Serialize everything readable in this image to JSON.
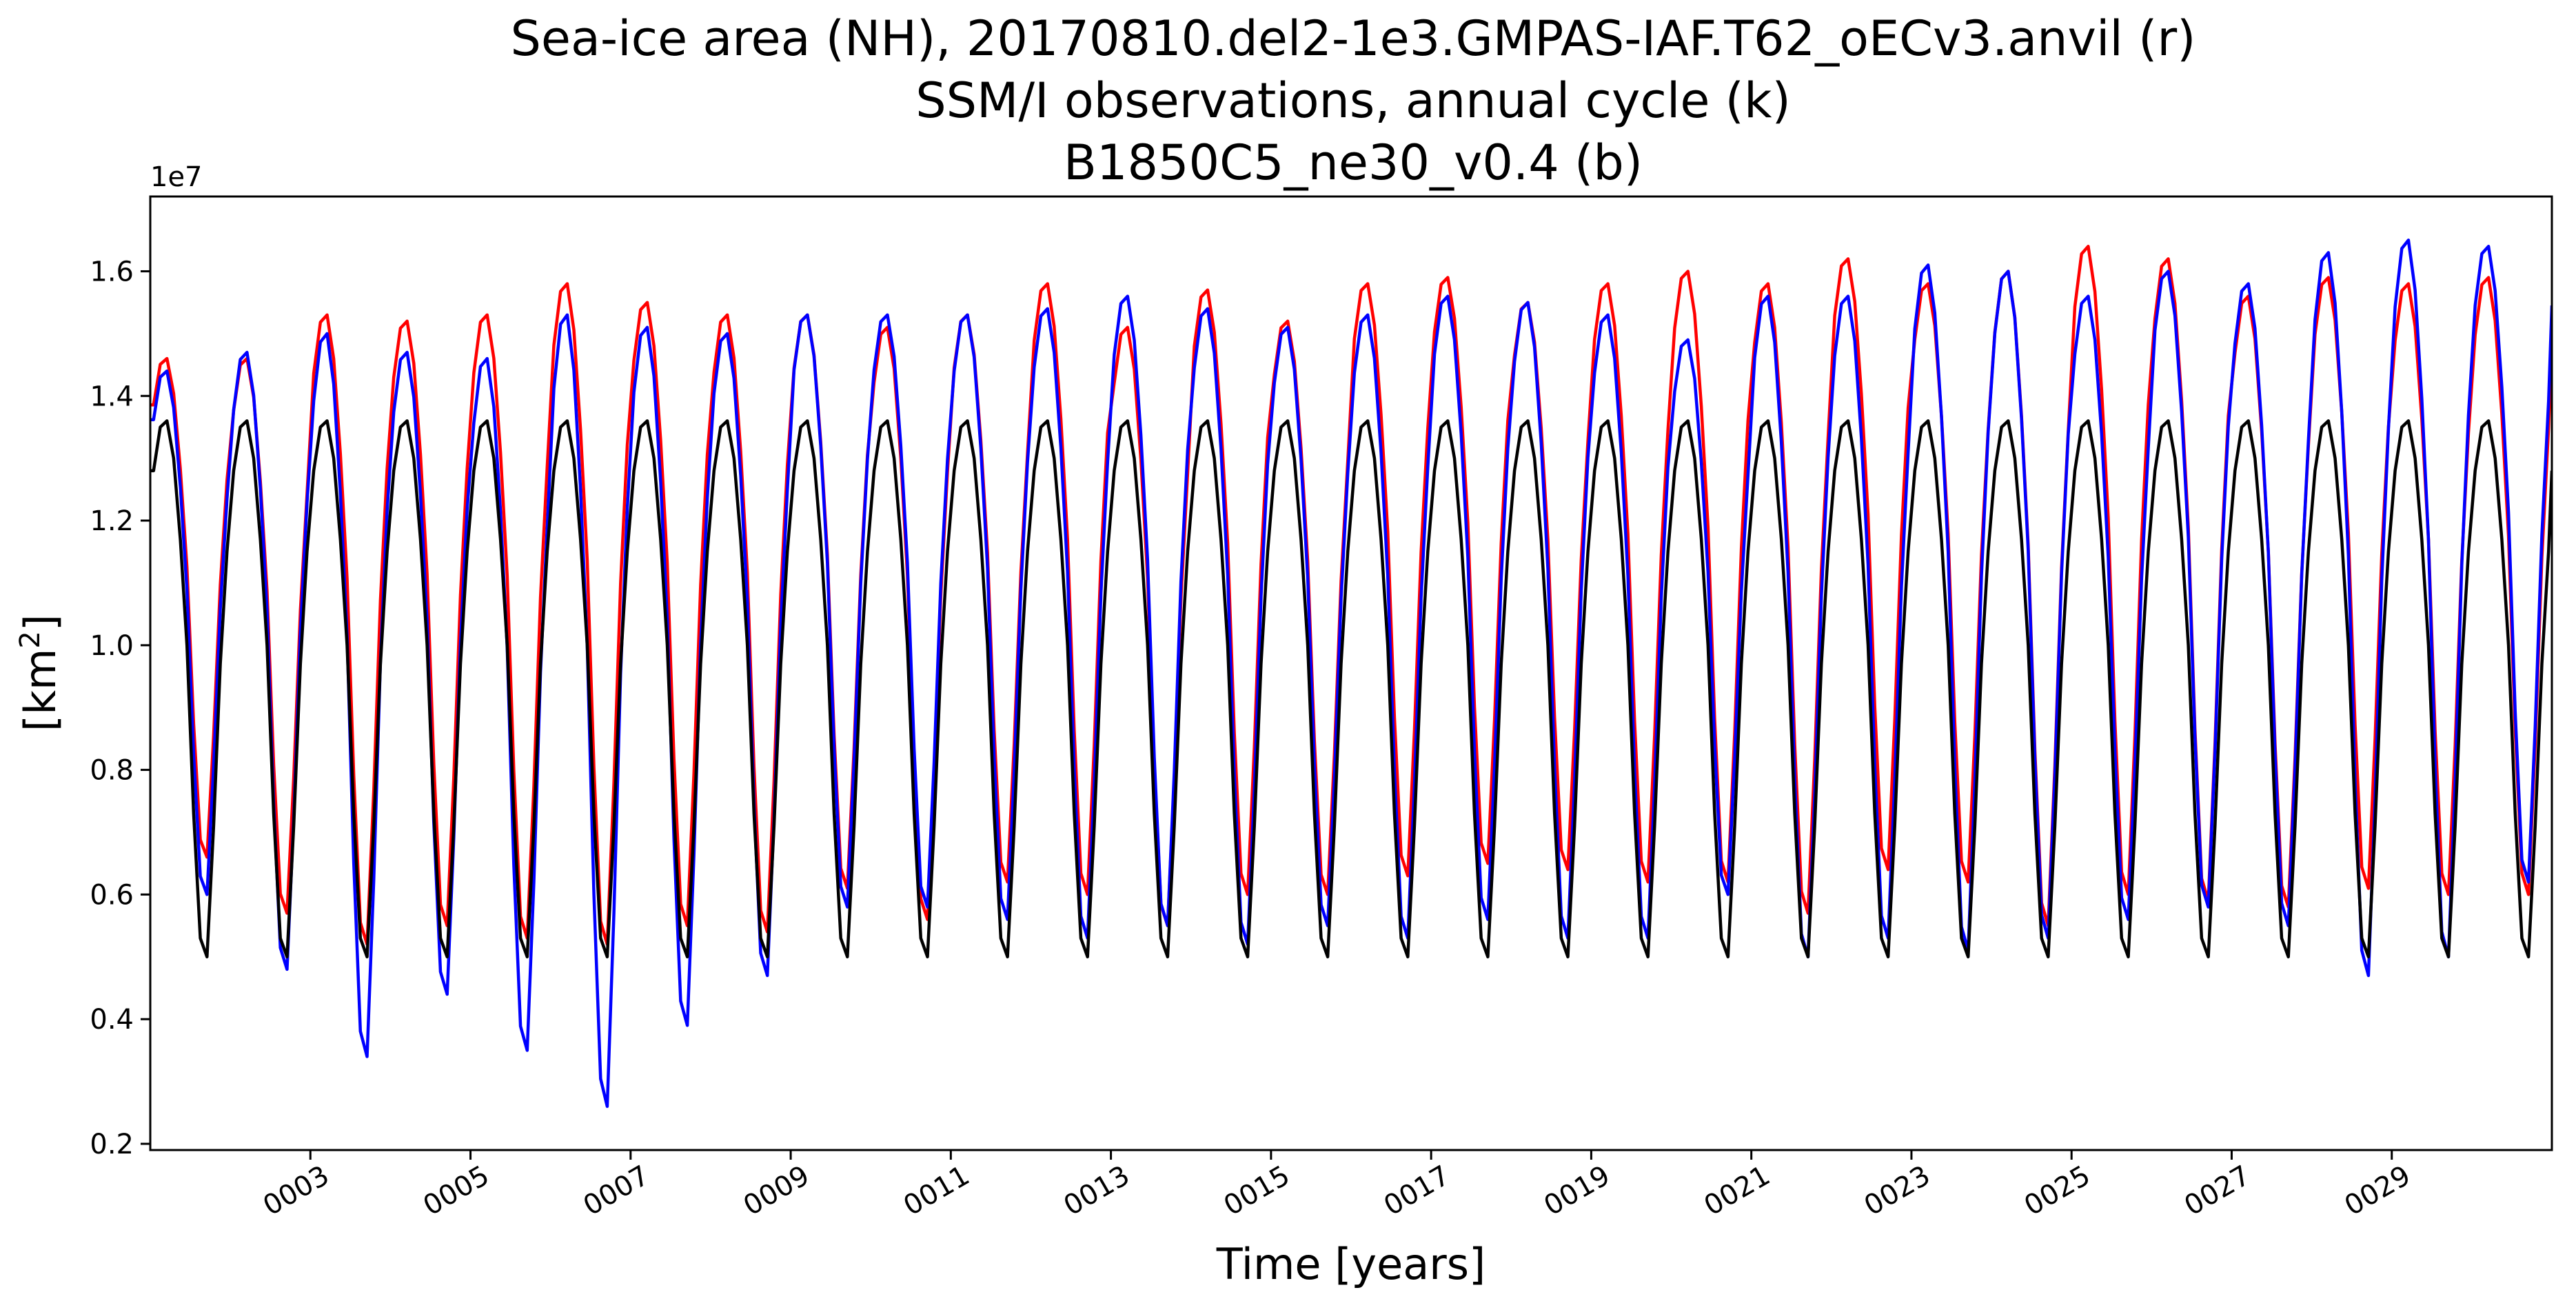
{
  "chart_data": {
    "type": "line",
    "title_lines": [
      "Sea-ice area (NH), 20170810.del2-1e3.GMPAS-IAF.T62_oECv3.anvil (r)",
      "SSM/I observations, annual cycle (k)",
      "B1850C5_ne30_v0.4 (b)"
    ],
    "xlabel": "Time [years]",
    "ylabel": "[km",
    "ylabel_superscript": "2",
    "ylabel_suffix": "]",
    "y_offset_label": "1e7",
    "xlim": [
      1.0,
      31.0
    ],
    "ylim": [
      0.19,
      1.72
    ],
    "x_ticks": [
      {
        "value": 3,
        "label": "0003"
      },
      {
        "value": 5,
        "label": "0005"
      },
      {
        "value": 7,
        "label": "0007"
      },
      {
        "value": 9,
        "label": "0009"
      },
      {
        "value": 11,
        "label": "0011"
      },
      {
        "value": 13,
        "label": "0013"
      },
      {
        "value": 15,
        "label": "0015"
      },
      {
        "value": 17,
        "label": "0017"
      },
      {
        "value": 19,
        "label": "0019"
      },
      {
        "value": 21,
        "label": "0021"
      },
      {
        "value": 23,
        "label": "0023"
      },
      {
        "value": 25,
        "label": "0025"
      },
      {
        "value": 27,
        "label": "0027"
      },
      {
        "value": 29,
        "label": "0029"
      }
    ],
    "y_ticks": [
      {
        "value": 0.2,
        "label": "0.2"
      },
      {
        "value": 0.4,
        "label": "0.4"
      },
      {
        "value": 0.6,
        "label": "0.6"
      },
      {
        "value": 0.8,
        "label": "0.8"
      },
      {
        "value": 1.0,
        "label": "1.0"
      },
      {
        "value": 1.2,
        "label": "1.2"
      },
      {
        "value": 1.4,
        "label": "1.4"
      },
      {
        "value": 1.6,
        "label": "1.6"
      }
    ],
    "months_per_year": 12,
    "series": [
      {
        "color": "#000000",
        "climatology": [
          1.28,
          1.35,
          1.36,
          1.3,
          1.17,
          1.0,
          0.73,
          0.53,
          0.5,
          0.71,
          0.97,
          1.15
        ]
      },
      {
        "color": "#ff0000",
        "peaks": [
          1.46,
          1.46,
          1.53,
          1.52,
          1.53,
          1.58,
          1.55,
          1.53,
          1.53,
          1.51,
          1.53,
          1.58,
          1.51,
          1.57,
          1.52,
          1.58,
          1.59,
          1.55,
          1.58,
          1.6,
          1.58,
          1.62,
          1.58,
          1.6,
          1.64,
          1.62,
          1.56,
          1.59,
          1.58,
          1.59
        ],
        "troughs": [
          0.66,
          0.57,
          0.52,
          0.55,
          0.53,
          0.52,
          0.55,
          0.54,
          0.61,
          0.56,
          0.62,
          0.6,
          0.55,
          0.6,
          0.6,
          0.63,
          0.65,
          0.64,
          0.62,
          0.62,
          0.57,
          0.64,
          0.62,
          0.55,
          0.6,
          0.59,
          0.58,
          0.61,
          0.6,
          0.6
        ]
      },
      {
        "color": "#0000ff",
        "peaks": [
          1.44,
          1.47,
          1.5,
          1.47,
          1.46,
          1.53,
          1.51,
          1.5,
          1.53,
          1.53,
          1.53,
          1.54,
          1.56,
          1.54,
          1.51,
          1.53,
          1.56,
          1.55,
          1.53,
          1.49,
          1.56,
          1.56,
          1.61,
          1.6,
          1.56,
          1.6,
          1.58,
          1.63,
          1.65,
          1.64
        ],
        "troughs": [
          0.6,
          0.48,
          0.34,
          0.44,
          0.35,
          0.26,
          0.39,
          0.47,
          0.58,
          0.58,
          0.56,
          0.53,
          0.55,
          0.52,
          0.55,
          0.53,
          0.56,
          0.53,
          0.53,
          0.6,
          0.5,
          0.53,
          0.51,
          0.53,
          0.56,
          0.58,
          0.55,
          0.47,
          0.5,
          0.62
        ]
      }
    ]
  }
}
